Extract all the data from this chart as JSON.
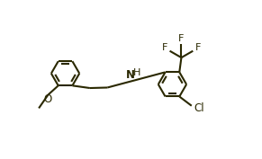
{
  "background": "#ffffff",
  "bond_color": "#2a2800",
  "line_width": 1.5,
  "font_size": 8.0,
  "figsize": [
    2.91,
    1.77
  ],
  "dpi": 100,
  "xlim": [
    -0.5,
    9.5
  ],
  "ylim": [
    -0.5,
    6.0
  ]
}
